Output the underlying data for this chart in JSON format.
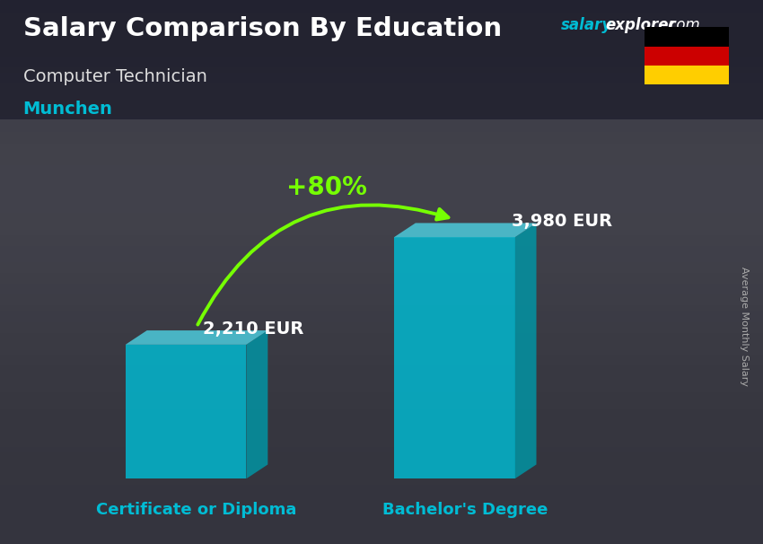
{
  "title": "Salary Comparison By Education",
  "subtitle": "Computer Technician",
  "city": "Munchen",
  "categories": [
    "Certificate or Diploma",
    "Bachelor's Degree"
  ],
  "values": [
    2210,
    3980
  ],
  "value_labels": [
    "2,210 EUR",
    "3,980 EUR"
  ],
  "pct_change": "+80%",
  "bar_color_face": "#00BCD4",
  "bar_color_side": "#0097A7",
  "bar_color_top": "#4DD0E1",
  "arrow_color": "#76FF03",
  "title_color": "#FFFFFF",
  "subtitle_color": "#DDDDDD",
  "city_color": "#00BCD4",
  "value_label_color": "#FFFFFF",
  "xlabel_color": "#00BCD4",
  "ylabel_text": "Average Monthly Salary",
  "ylabel_color": "#AAAAAA",
  "bg_dark": "#1a1a2e",
  "bg_mid": "#2a2a3e",
  "ylim": [
    0,
    5200
  ],
  "bar_alpha": 0.82,
  "figsize": [
    8.5,
    6.06
  ],
  "dpi": 100
}
